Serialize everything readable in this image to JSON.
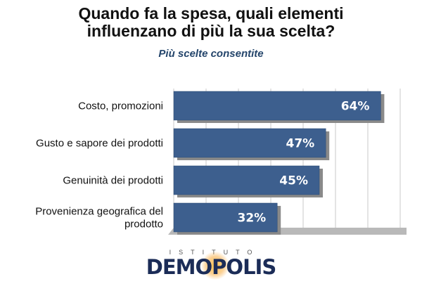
{
  "header": {
    "title_line1": "Quando fa la spesa, quali elementi",
    "title_line2": "influenzano di più la sua scelta?",
    "subtitle": "Più scelte consentite"
  },
  "logo": {
    "top": "ISTITUTO",
    "main": "DEMOPOLIS"
  },
  "chart_data": {
    "type": "bar",
    "orientation": "horizontal",
    "categories": [
      [
        "Costo, promozioni"
      ],
      [
        "Gusto e sapore dei prodotti"
      ],
      [
        "Genuinità dei prodotti"
      ],
      [
        "Provenienza geografica del",
        "prodotto"
      ]
    ],
    "values": [
      64,
      47,
      45,
      32
    ],
    "value_labels": [
      "64%",
      "47%",
      "45%",
      "32%"
    ],
    "xlim": [
      0,
      100
    ],
    "grid": true,
    "colors": {
      "bar": "#3d5f8e",
      "shadow": "#8a8a8a",
      "grid": "#c8c8c8",
      "floor": "#b9b9b9"
    }
  }
}
